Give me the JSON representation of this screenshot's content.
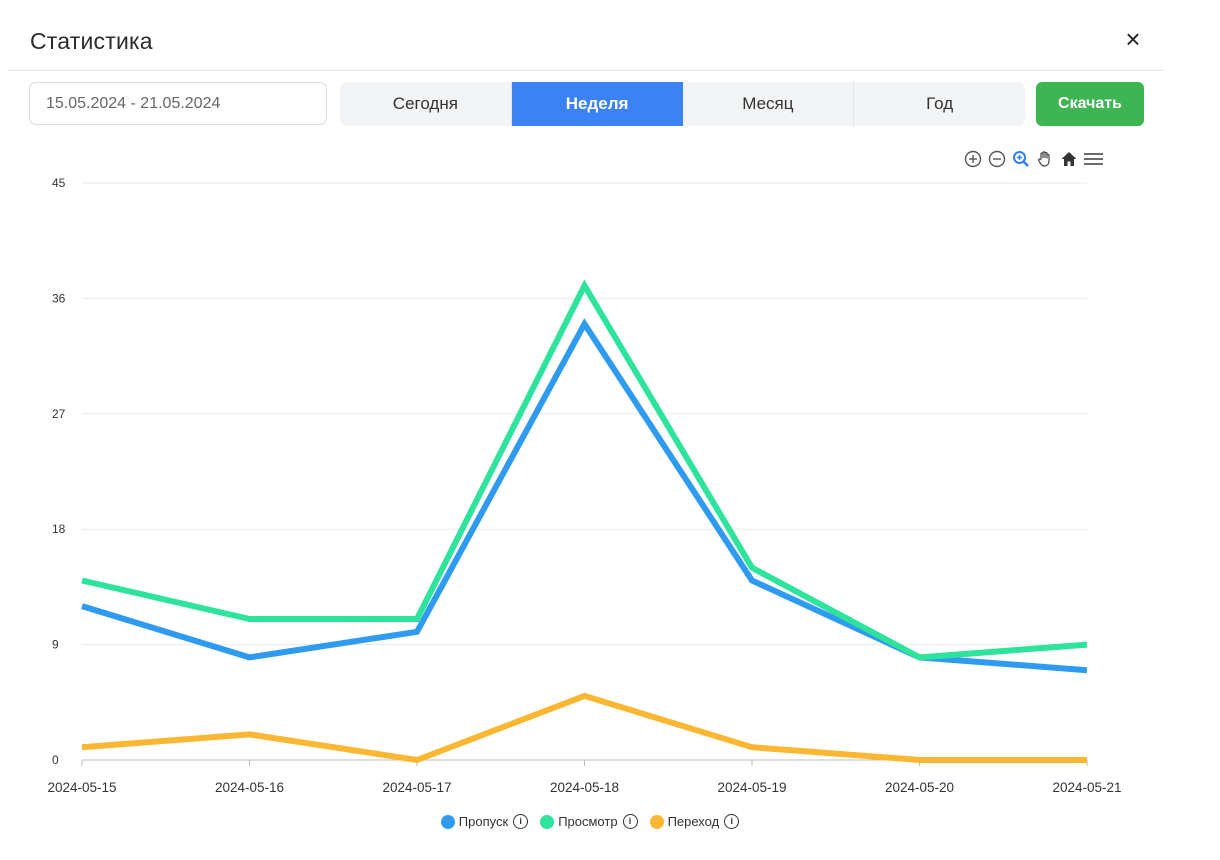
{
  "header": {
    "title": "Статистика",
    "close_label": "×"
  },
  "filters": {
    "date_range": "15.05.2024 - 21.05.2024",
    "periods": [
      {
        "label": "Сегодня",
        "active": false
      },
      {
        "label": "Неделя",
        "active": true
      },
      {
        "label": "Месяц",
        "active": false
      },
      {
        "label": "Год",
        "active": false
      }
    ],
    "download_label": "Скачать"
  },
  "toolbar": {
    "icons": [
      "zoom-in-icon",
      "zoom-out-icon",
      "selection-zoom-icon",
      "pan-hand-icon",
      "home-reset-icon",
      "menu-icon"
    ]
  },
  "colors": {
    "accent": "#3b82f6",
    "download": "#3eb553"
  },
  "chart_data": {
    "type": "line",
    "categories": [
      "2024-05-15",
      "2024-05-16",
      "2024-05-17",
      "2024-05-18",
      "2024-05-19",
      "2024-05-20",
      "2024-05-21"
    ],
    "yticks": [
      0,
      9,
      18,
      27,
      36,
      45
    ],
    "ylim": [
      0,
      45
    ],
    "grid": true,
    "legend_position": "bottom-center",
    "series": [
      {
        "name": "Пропуск",
        "color": "#2f9bf0",
        "values": [
          12,
          8,
          10,
          34,
          14,
          8,
          7
        ]
      },
      {
        "name": "Просмотр",
        "color": "#2ee39b",
        "values": [
          14,
          11,
          11,
          37,
          15,
          8,
          9
        ]
      },
      {
        "name": "Переход",
        "color": "#fbb731",
        "values": [
          1,
          2,
          0,
          5,
          1,
          0,
          0
        ]
      }
    ]
  }
}
